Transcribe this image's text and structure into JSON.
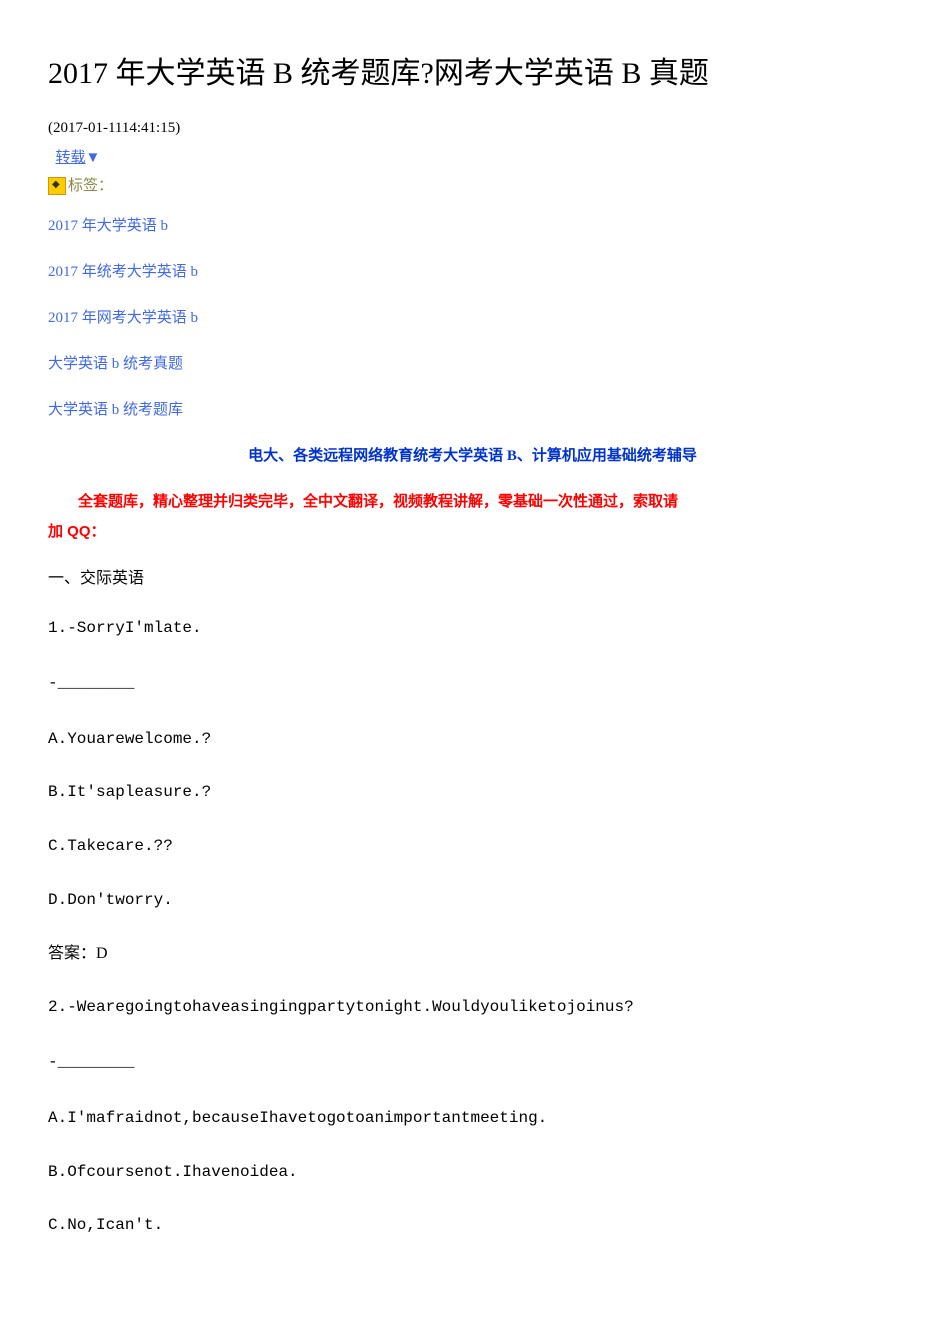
{
  "title": "2017 年大学英语 B 统考题库?网考大学英语 B 真题",
  "timestamp": "(2017-01-1114:41:15)",
  "repost_label": "转载",
  "triangle": "▼",
  "labels_text": "标签：",
  "tags": [
    "2017 年大学英语 b",
    "2017 年统考大学英语 b",
    "2017 年网考大学英语 b",
    "大学英语 b 统考真题",
    "大学英语 b 统考题库"
  ],
  "intro_blue": "电大、各类远程网络教育统考大学英语 B、计算机应用基础统考辅导",
  "intro_red_1": "全套题库，精心整理并归类完毕，全中文翻译，视频教程讲解，零基础一次性通过，索取请",
  "intro_red_2": "加 QQ：",
  "section_title": "一、交际英语",
  "q1": {
    "prompt": "1.-SorryI'mlate.",
    "blank": "-________",
    "options": {
      "a": "A.Youarewelcome.?",
      "b": "B.It'sapleasure.?",
      "c": "C.Takecare.??",
      "d": "D.Don'tworry."
    },
    "answer": "答案：D"
  },
  "q2": {
    "prompt": "2.-Wearegoingtohaveasingingpartytonight.Wouldyouliketojoinus?",
    "blank": "-________",
    "options": {
      "a": "A.I'mafraidnot,becauseIhavetogotoanimportantmeeting.",
      "b": "B.Ofcoursenot.Ihavenoidea.",
      "c": "C.No,Ican't."
    }
  }
}
